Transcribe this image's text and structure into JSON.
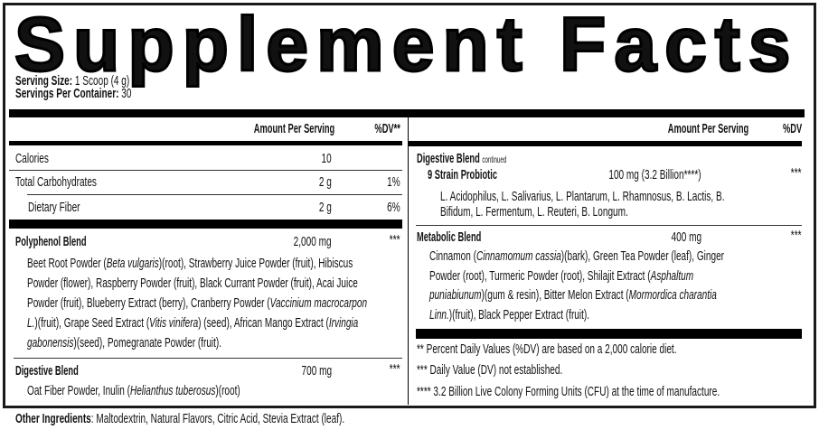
{
  "title": "Supplement Facts",
  "serving": {
    "size_label": "Serving Size:",
    "size_value": " 1 Scoop (4 g)",
    "per_container_label": "Servings Per Container:",
    "per_container_value": " 30"
  },
  "headers": {
    "amount": "Amount Per Serving",
    "dv_left": "%DV**",
    "dv_right": "%DV"
  },
  "left_rows": [
    {
      "name": "Calories",
      "amount": "10",
      "dv": ""
    },
    {
      "name": "Total Carbohydrates",
      "amount": "2 g",
      "dv": "1%"
    },
    {
      "name": "Dietary Fiber",
      "amount": "2 g",
      "dv": "6%"
    }
  ],
  "polyphenol": {
    "name": "Polyphenol Blend",
    "amount": "2,000 mg",
    "dv": "***",
    "lines": [
      [
        {
          "t": "Beet Root Powder ("
        },
        {
          "t": "Beta vulgaris",
          "i": true
        },
        {
          "t": ")(root), Strawberry Juice Powder (fruit), Hibiscus"
        }
      ],
      [
        {
          "t": "Powder (flower), Raspberry Powder (fruit), Black Currant Powder (fruit), Acai Juice"
        }
      ],
      [
        {
          "t": "Powder (fruit), Blueberry Extract (berry), Cranberry Powder ("
        },
        {
          "t": "Vaccinium macrocarpon",
          "i": true
        }
      ],
      [
        {
          "t": "L.",
          "i": true
        },
        {
          "t": ")(fruit), Grape Seed Extract ("
        },
        {
          "t": "Vitis vinifera",
          "i": true
        },
        {
          "t": ")  (seed), African Mango Extract ("
        },
        {
          "t": "Irvingia",
          "i": true
        }
      ],
      [
        {
          "t": "gabonensis",
          "i": true
        },
        {
          "t": ")(seed), Pomegranate Powder (fruit)."
        }
      ]
    ]
  },
  "digestive": {
    "name": "Digestive Blend",
    "amount": "700 mg",
    "dv": "***",
    "lines": [
      [
        {
          "t": "Oat Fiber Powder, Inulin ("
        },
        {
          "t": "Helianthus tuberosus",
          "i": true
        },
        {
          "t": ")(root)"
        }
      ]
    ]
  },
  "other_ingredients": {
    "label": "Other Ingredients",
    "value": ": Maltodextrin, Natural Flavors, Citric Acid, Stevia Extract (leaf)."
  },
  "digestive_cont": {
    "name": "Digestive Blend",
    "note": "continued",
    "probiotic_name": "9 Strain Probiotic",
    "probiotic_amount": "100 mg (3.2 Billion****)",
    "dv": "***",
    "lines": [
      [
        {
          "t": "L. Acidophilus, L. Salivarius, L. Plantarum, L. Rhamnosus, B. Lactis, B."
        }
      ],
      [
        {
          "t": "Bifidum, L. Fermentum, L. Reuteri, B. Longum."
        }
      ]
    ]
  },
  "metabolic": {
    "name": "Metabolic Blend",
    "amount": "400 mg",
    "dv": "***",
    "lines": [
      [
        {
          "t": "Cinnamon ("
        },
        {
          "t": "Cinnamomum cassia",
          "i": true
        },
        {
          "t": ")(bark), Green Tea Powder (leaf), Ginger"
        }
      ],
      [
        {
          "t": "Powder (root), Turmeric Powder (root), Shilajit Extract ("
        },
        {
          "t": "Asphaltum",
          "i": true
        }
      ],
      [
        {
          "t": "puniabiunum",
          "i": true
        },
        {
          "t": ")(gum & resin), Bitter Melon Extract ("
        },
        {
          "t": "Mormordica charantia",
          "i": true
        }
      ],
      [
        {
          "t": "Linn.",
          "i": true
        },
        {
          "t": ")(fruit), Black Pepper Extract (fruit)."
        }
      ]
    ]
  },
  "footnotes": [
    "** Percent Daily Values (%DV) are based on a 2,000 calorie diet.",
    "*** Daily Value (DV) not established.",
    "**** 3.2 Billion Live Colony Forming Units (CFU) at the time of manufacture."
  ]
}
